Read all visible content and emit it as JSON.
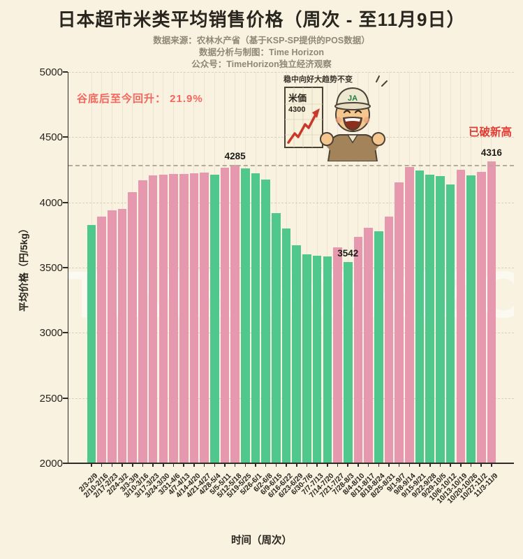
{
  "title": "日本超市米类平均销售价格（周次 - 至11月9日）",
  "subtitles": [
    "数据来源：农林水产省（基于KSP-SP提供的POS数据）",
    "数据分析与制图：Time Horizon",
    "公众号：TimeHorizon独立经济观察"
  ],
  "annotations": {
    "recovery": "谷底后至今回升： 21.9%",
    "new_high": "已破新高"
  },
  "cartoon": {
    "caption": "稳中向好大趋势不变",
    "poster_title": "米価",
    "poster_value": "4300",
    "cap_text": "JA"
  },
  "watermark": "TIME HORIZON",
  "colors": {
    "background": "#f9f2e0",
    "bar_up": "#e698ae",
    "bar_down": "#50c88d",
    "axis": "#2f2b26",
    "recovery_red": "#f4655c",
    "new_high_red": "#e23b33"
  },
  "chart_data": {
    "type": "bar",
    "title": "日本超市米类平均销售价格（周次 - 至11月9日）",
    "xlabel": "时间（周次）",
    "ylabel": "平均价格（円/5kg）",
    "ylim": [
      2000,
      5000
    ],
    "yticks": [
      2000,
      2500,
      3000,
      3500,
      4000,
      4500,
      5000
    ],
    "grid": true,
    "reference_line": 4285,
    "legend": "none (color encodes weekly change: pink = up, green = down)",
    "categories": [
      "2/3-2/9",
      "2/10-2/16",
      "2/17-2/23",
      "2/24-3/2",
      "3/3-3/9",
      "3/10-3/16",
      "3/17-3/23",
      "3/24-3/30",
      "3/31-4/6",
      "4/7-4/13",
      "4/14-4/20",
      "4/21-4/27",
      "4/28-5/4",
      "5/5-5/11",
      "5/12-5/18",
      "5/19-5/25",
      "5/26-6/1",
      "6/2-6/8",
      "6/9-6/15",
      "6/16-6/22",
      "6/23-6/29",
      "6/30-7/6",
      "7/7-7/13",
      "7/14-7/20",
      "7/21-7/27",
      "7/28-8/3",
      "8/4-8/10",
      "8/11-8/17",
      "8/18-8/24",
      "8/25-8/31",
      "9/1-9/7",
      "9/8-9/14",
      "9/15-9/21",
      "9/22-9/28",
      "9/29-10/5",
      "10/6-10/12",
      "10/13-10/19",
      "10/20-10/26",
      "10/27-11/2",
      "11/3-11/9"
    ],
    "values": [
      3829,
      3892,
      3939,
      3952,
      4077,
      4172,
      4206,
      4213,
      4217,
      4220,
      4224,
      4228,
      4214,
      4268,
      4285,
      4260,
      4223,
      4176,
      3920,
      3801,
      3672,
      3602,
      3591,
      3588,
      3654,
      3542,
      3737,
      3806,
      3779,
      3892,
      4151,
      4270,
      4243,
      4212,
      4203,
      4136,
      4248,
      4207,
      4234,
      4316
    ],
    "directions": [
      "down",
      "up",
      "up",
      "up",
      "up",
      "up",
      "up",
      "up",
      "up",
      "up",
      "up",
      "up",
      "down",
      "up",
      "up",
      "down",
      "down",
      "down",
      "down",
      "down",
      "down",
      "down",
      "down",
      "down",
      "up",
      "down",
      "up",
      "up",
      "down",
      "up",
      "up",
      "up",
      "down",
      "down",
      "down",
      "down",
      "up",
      "down",
      "up",
      "up"
    ],
    "annotated_bars": [
      {
        "index": 14,
        "label": "4285"
      },
      {
        "index": 25,
        "label": "3542"
      },
      {
        "index": 39,
        "label": "4316"
      }
    ]
  }
}
